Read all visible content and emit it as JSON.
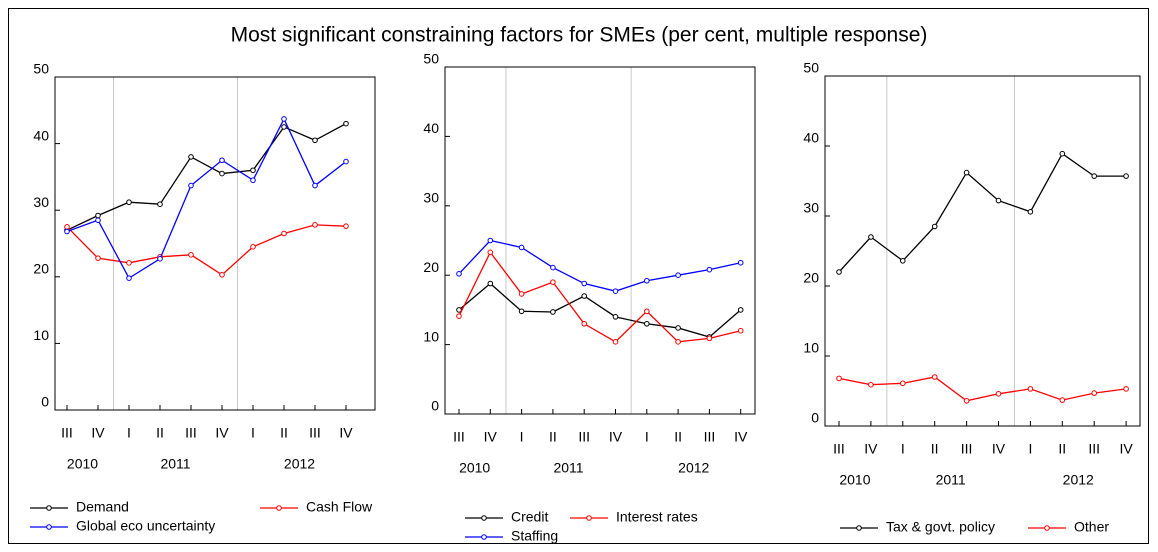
{
  "title": "Most significant constraining factors for SMEs (per cent, multiple response)",
  "chart_data": [
    {
      "type": "line",
      "categories": [
        "III",
        "IV",
        "I",
        "II",
        "III",
        "IV",
        "I",
        "II",
        "III",
        "IV"
      ],
      "years": [
        "2010",
        "2011",
        "2012"
      ],
      "ylim": [
        0,
        50
      ],
      "yticks": [
        0,
        10,
        20,
        30,
        40,
        50
      ],
      "series": [
        {
          "name": "Demand",
          "color": "#000000",
          "values": [
            27,
            29.2,
            31.2,
            30.9,
            38,
            35.5,
            36,
            42.5,
            40.5,
            43
          ]
        },
        {
          "name": "Cash Flow",
          "color": "#ff0000",
          "values": [
            27.5,
            22.8,
            22.1,
            23,
            23.3,
            20.3,
            24.5,
            26.5,
            27.8,
            27.6
          ]
        },
        {
          "name": "Global eco uncertainty",
          "color": "#0000ff",
          "values": [
            26.8,
            28.5,
            19.8,
            22.7,
            33.7,
            37.5,
            34.5,
            43.7,
            33.7,
            37.3
          ]
        }
      ]
    },
    {
      "type": "line",
      "categories": [
        "III",
        "IV",
        "I",
        "II",
        "III",
        "IV",
        "I",
        "II",
        "III",
        "IV"
      ],
      "years": [
        "2010",
        "2011",
        "2012"
      ],
      "ylim": [
        0,
        50
      ],
      "yticks": [
        0,
        10,
        20,
        30,
        40,
        50
      ],
      "series": [
        {
          "name": "Credit",
          "color": "#000000",
          "values": [
            15,
            18.8,
            14.8,
            14.7,
            17,
            14,
            13,
            12.4,
            11.1,
            15
          ]
        },
        {
          "name": "Interest rates",
          "color": "#ff0000",
          "values": [
            14.1,
            23.3,
            17.3,
            19,
            13,
            10.4,
            14.8,
            10.4,
            10.9,
            12
          ]
        },
        {
          "name": "Staffing",
          "color": "#0000ff",
          "values": [
            20.2,
            25,
            24,
            21.1,
            18.8,
            17.7,
            19.2,
            20,
            20.8,
            21.8
          ]
        }
      ]
    },
    {
      "type": "line",
      "categories": [
        "III",
        "IV",
        "I",
        "II",
        "III",
        "IV",
        "I",
        "II",
        "III",
        "IV"
      ],
      "years": [
        "2010",
        "2011",
        "2012"
      ],
      "ylim": [
        0,
        50
      ],
      "yticks": [
        0,
        10,
        20,
        30,
        40,
        50
      ],
      "series": [
        {
          "name": "Tax & govt. policy",
          "color": "#000000",
          "values": [
            22,
            27,
            23.6,
            28.5,
            36.2,
            32.2,
            30.6,
            38.9,
            35.7,
            35.7
          ]
        },
        {
          "name": "Other",
          "color": "#ff0000",
          "values": [
            6.8,
            5.9,
            6.1,
            7,
            3.6,
            4.6,
            5.3,
            3.7,
            4.7,
            5.3
          ]
        }
      ]
    }
  ]
}
